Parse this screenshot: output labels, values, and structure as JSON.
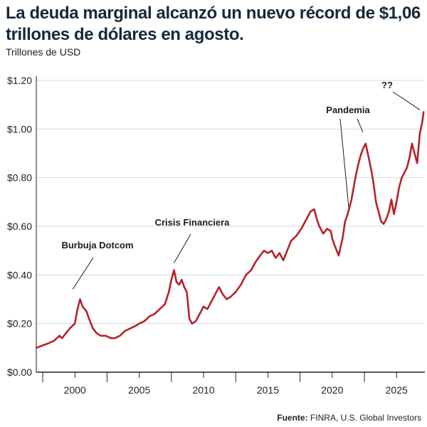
{
  "title": "La deuda marginal alcanzó un nuevo récord de $1,06 trillones de dólares en agosto.",
  "unit_label": "Trillones de USD",
  "source": {
    "prefix": "Fuente:",
    "text": "FINRA, U.S. Global Investors"
  },
  "colors": {
    "line": "#b42328",
    "text": "#15283c",
    "axis": "#222222",
    "grid": "#d6d6d6"
  },
  "chart_data": {
    "type": "line",
    "title": "La deuda marginal alcanzó un nuevo récord de $1,06 trillones de dólares en agosto.",
    "xlabel": "",
    "ylabel": "Trillones de USD",
    "xlim": [
      1997,
      2027.2
    ],
    "ylim": [
      0,
      1.2
    ],
    "grid": "horizontal",
    "xticks": [
      2000,
      2005,
      2010,
      2015,
      2020,
      2025
    ],
    "xtick_labels": [
      "2000",
      "2005",
      "2010",
      "2015",
      "2020",
      "2025"
    ],
    "yticks": [
      0,
      0.2,
      0.4,
      0.6,
      0.8,
      1.0,
      1.2
    ],
    "ytick_labels": [
      "$0.00",
      "$0.20",
      "$0.40",
      "$0.60",
      "$0.80",
      "$1.00",
      "$1.20"
    ],
    "series": [
      {
        "name": "",
        "x": [
          1997.0,
          1997.5,
          1998.0,
          1998.4,
          1998.8,
          1999.0,
          1999.3,
          1999.6,
          1999.8,
          2000.0,
          2000.2,
          2000.4,
          2000.6,
          2000.9,
          2001.1,
          2001.4,
          2001.7,
          2002.0,
          2002.4,
          2002.8,
          2003.1,
          2003.5,
          2003.9,
          2004.3,
          2004.7,
          2005.0,
          2005.4,
          2005.8,
          2006.2,
          2006.6,
          2007.0,
          2007.3,
          2007.5,
          2007.7,
          2007.9,
          2008.1,
          2008.3,
          2008.5,
          2008.7,
          2008.9,
          2009.1,
          2009.4,
          2009.7,
          2010.0,
          2010.3,
          2010.6,
          2010.9,
          2011.2,
          2011.5,
          2011.8,
          2012.1,
          2012.5,
          2012.9,
          2013.3,
          2013.7,
          2014.0,
          2014.4,
          2014.7,
          2015.0,
          2015.3,
          2015.6,
          2015.9,
          2016.2,
          2016.5,
          2016.8,
          2017.2,
          2017.6,
          2018.0,
          2018.3,
          2018.6,
          2018.8,
          2019.0,
          2019.3,
          2019.6,
          2019.9,
          2020.0,
          2020.2,
          2020.5,
          2020.8,
          2021.0,
          2021.2,
          2021.5,
          2021.8,
          2022.0,
          2022.2,
          2022.4,
          2022.6,
          2022.8,
          2023.0,
          2023.2,
          2023.4,
          2023.6,
          2023.8,
          2024.0,
          2024.2,
          2024.4,
          2024.6,
          2024.8,
          2025.0,
          2025.2,
          2025.4,
          2025.6,
          2025.8,
          2026.0,
          2026.2,
          2026.4,
          2026.6,
          2026.8,
          2027.0,
          2027.1
        ],
        "values": [
          0.1,
          0.11,
          0.12,
          0.13,
          0.15,
          0.14,
          0.16,
          0.18,
          0.19,
          0.2,
          0.26,
          0.3,
          0.27,
          0.25,
          0.22,
          0.18,
          0.16,
          0.15,
          0.15,
          0.14,
          0.14,
          0.15,
          0.17,
          0.18,
          0.19,
          0.2,
          0.21,
          0.23,
          0.24,
          0.26,
          0.28,
          0.33,
          0.38,
          0.42,
          0.37,
          0.36,
          0.38,
          0.35,
          0.33,
          0.22,
          0.2,
          0.21,
          0.24,
          0.27,
          0.26,
          0.29,
          0.32,
          0.35,
          0.32,
          0.3,
          0.31,
          0.33,
          0.36,
          0.4,
          0.42,
          0.45,
          0.48,
          0.5,
          0.49,
          0.5,
          0.47,
          0.49,
          0.46,
          0.5,
          0.54,
          0.56,
          0.59,
          0.63,
          0.66,
          0.67,
          0.63,
          0.6,
          0.57,
          0.59,
          0.58,
          0.55,
          0.52,
          0.48,
          0.55,
          0.62,
          0.65,
          0.71,
          0.8,
          0.85,
          0.89,
          0.92,
          0.94,
          0.89,
          0.84,
          0.78,
          0.7,
          0.66,
          0.62,
          0.61,
          0.63,
          0.66,
          0.71,
          0.65,
          0.7,
          0.76,
          0.8,
          0.82,
          0.84,
          0.88,
          0.94,
          0.9,
          0.86,
          0.98,
          1.03,
          1.07
        ]
      }
    ],
    "annotations": [
      {
        "text": "Burbuja Dotcom",
        "x": 2000.0,
        "y": 0.3
      },
      {
        "text": "Crisis Financiera",
        "x": 2007.7,
        "y": 0.42
      },
      {
        "text": "Pandemia",
        "x": 2021.3,
        "y": 0.65
      },
      {
        "text": "Pandemia",
        "x": 2022.6,
        "y": 0.97
      },
      {
        "text": "??",
        "x": 2027.1,
        "y": 1.07
      }
    ]
  }
}
